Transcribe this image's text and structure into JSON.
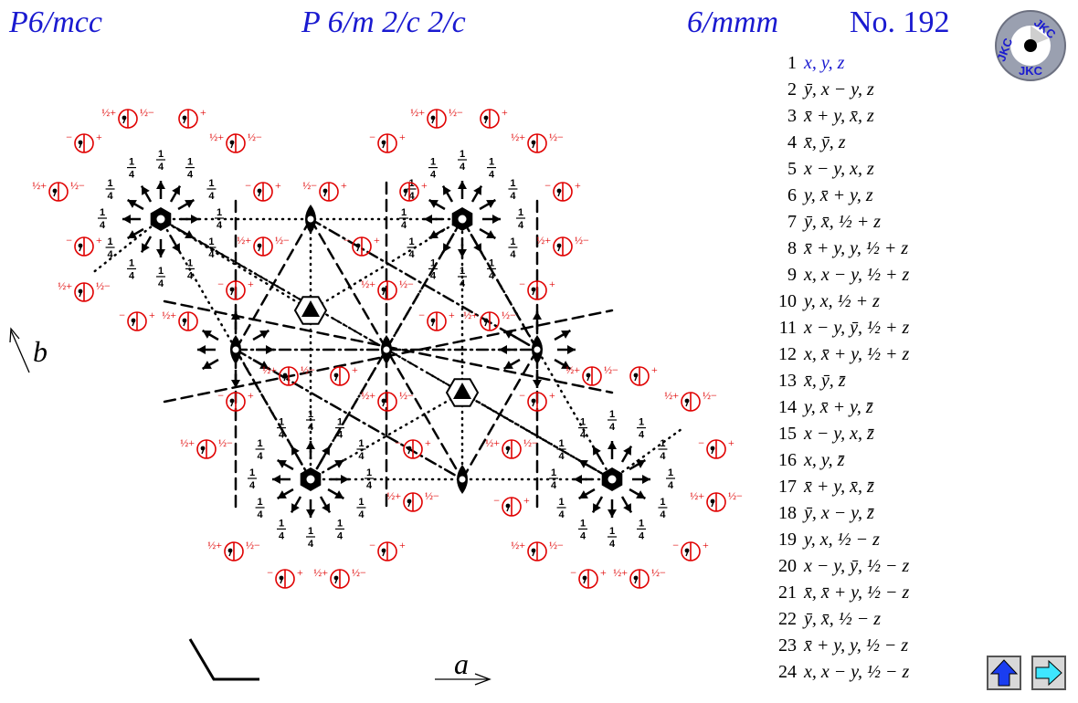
{
  "header": {
    "short_symbol": "P6/mcc",
    "full_symbol": "P 6/m 2/c 2/c",
    "point_group": "6/mmm",
    "number": "No. 192"
  },
  "logo": {
    "text": "JKC",
    "icon": "jkc-logo-icon"
  },
  "axes": {
    "a": "a",
    "b": "b"
  },
  "labels": {
    "quarter": "1/4",
    "half_plus": "½+",
    "half_minus": "½−",
    "minus": "−",
    "plus": "+"
  },
  "operations": [
    {
      "n": "1",
      "text": "x, y, z"
    },
    {
      "n": "2",
      "text": "ȳ, x − y, z"
    },
    {
      "n": "3",
      "text": "x̄ + y, x̄, z"
    },
    {
      "n": "4",
      "text": "x̄, ȳ, z"
    },
    {
      "n": "5",
      "text": "x − y, x, z"
    },
    {
      "n": "6",
      "text": "y, x̄ + y, z"
    },
    {
      "n": "7",
      "text": "ȳ, x̄, ½ + z"
    },
    {
      "n": "8",
      "text": "x̄ + y, y, ½ + z"
    },
    {
      "n": "9",
      "text": "x, x − y, ½ + z"
    },
    {
      "n": "10",
      "text": "y, x, ½ + z"
    },
    {
      "n": "11",
      "text": "x − y, ȳ, ½ + z"
    },
    {
      "n": "12",
      "text": "x, x̄ + y, ½ + z"
    },
    {
      "n": "13",
      "text": "x̄, ȳ, z̄"
    },
    {
      "n": "14",
      "text": "y, x̄ + y, z̄"
    },
    {
      "n": "15",
      "text": "x − y, x, z̄"
    },
    {
      "n": "16",
      "text": "x, y, z̄"
    },
    {
      "n": "17",
      "text": "x̄ + y, x̄, z̄"
    },
    {
      "n": "18",
      "text": "ȳ, x − y, z̄"
    },
    {
      "n": "19",
      "text": "y, x, ½ − z"
    },
    {
      "n": "20",
      "text": "x − y, ȳ, ½ − z"
    },
    {
      "n": "21",
      "text": "x̄, x̄ + y, ½ − z"
    },
    {
      "n": "22",
      "text": "ȳ, x̄, ½ − z"
    },
    {
      "n": "23",
      "text": "x̄ + y, y, ½ − z"
    },
    {
      "n": "24",
      "text": "x, x − y, ½ − z"
    }
  ],
  "nav": {
    "up_icon": "arrow-up-icon",
    "next_icon": "arrow-right-icon"
  },
  "colors": {
    "title": "#1a1ad0",
    "symbol_red": "#e00000",
    "black": "#000000"
  }
}
